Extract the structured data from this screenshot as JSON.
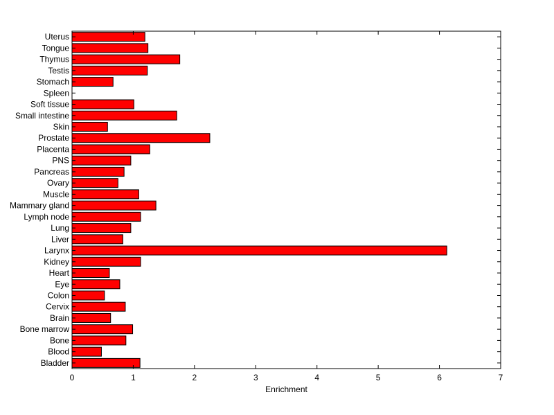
{
  "chart_data": {
    "type": "bar",
    "orientation": "horizontal",
    "categories": [
      "Bladder",
      "Blood",
      "Bone",
      "Bone marrow",
      "Brain",
      "Cervix",
      "Colon",
      "Eye",
      "Heart",
      "Kidney",
      "Larynx",
      "Liver",
      "Lung",
      "Lymph node",
      "Mammary gland",
      "Muscle",
      "Ovary",
      "Pancreas",
      "PNS",
      "Placenta",
      "Prostate",
      "Skin",
      "Small intestine",
      "Soft tissue",
      "Spleen",
      "Stomach",
      "Testis",
      "Thymus",
      "Tongue",
      "Uterus"
    ],
    "values": [
      1.11,
      0.48,
      0.88,
      0.99,
      0.63,
      0.87,
      0.53,
      0.78,
      0.61,
      1.12,
      6.12,
      0.83,
      0.96,
      1.12,
      1.37,
      1.09,
      0.75,
      0.85,
      0.96,
      1.27,
      2.25,
      0.58,
      1.71,
      1.01,
      0,
      0.67,
      1.23,
      1.76,
      1.24,
      1.19
    ],
    "xlabel": "Enrichment",
    "ylabel": "",
    "title": "",
    "xlim": [
      0,
      7
    ],
    "xticks": [
      "0",
      "1",
      "2",
      "3",
      "4",
      "5",
      "6",
      "7"
    ],
    "bar_color": "#ff0000",
    "grid": false
  }
}
